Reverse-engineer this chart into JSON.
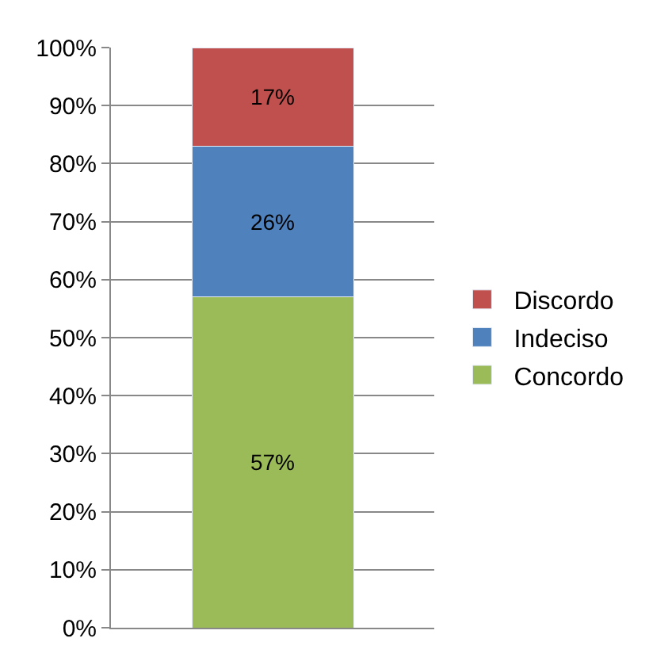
{
  "chart_data": {
    "type": "bar",
    "stacked": true,
    "categories": [
      null
    ],
    "series": [
      {
        "name": "Concordo",
        "color": "#9bbb59",
        "values": [
          57
        ],
        "value_labels": [
          "57%"
        ]
      },
      {
        "name": "Indeciso",
        "color": "#4f81bd",
        "values": [
          26
        ],
        "value_labels": [
          "26%"
        ]
      },
      {
        "name": "Discordo",
        "color": "#c0504d",
        "values": [
          17
        ],
        "value_labels": [
          "17%"
        ]
      }
    ],
    "ylim": [
      0,
      100
    ],
    "yticks": [
      {
        "value": 0,
        "label": "0%"
      },
      {
        "value": 10,
        "label": "10%"
      },
      {
        "value": 20,
        "label": "20%"
      },
      {
        "value": 30,
        "label": "30%"
      },
      {
        "value": 40,
        "label": "40%"
      },
      {
        "value": 50,
        "label": "50%"
      },
      {
        "value": 60,
        "label": "60%"
      },
      {
        "value": 70,
        "label": "70%"
      },
      {
        "value": 80,
        "label": "80%"
      },
      {
        "value": 90,
        "label": "90%"
      },
      {
        "value": 100,
        "label": "100%"
      }
    ],
    "grid": "y",
    "legend": "right"
  }
}
